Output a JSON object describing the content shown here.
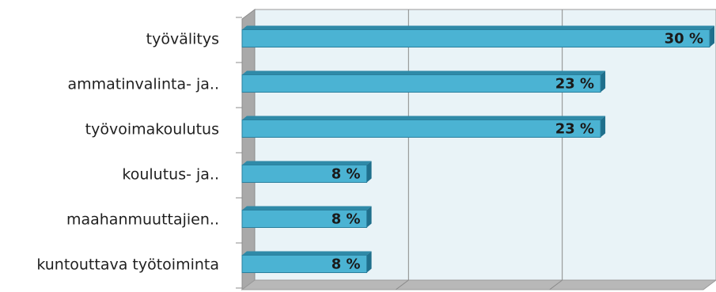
{
  "chart_data": {
    "type": "bar",
    "orientation": "horizontal",
    "categories": [
      "työvälitys",
      "ammatinvalinta- ja..",
      "työvoimakoulutus",
      "koulutus- ja..",
      "maahanmuuttajien..",
      "kuntouttava työtoiminta"
    ],
    "values": [
      30,
      23,
      23,
      8,
      8,
      8
    ],
    "data_labels": [
      "30 %",
      "23 %",
      "23 %",
      "8 %",
      "8 %",
      "8 %"
    ],
    "xlim": [
      0,
      30
    ],
    "grid": true,
    "legend": "none",
    "colors": {
      "bar_front": "#4bb3d3",
      "bar_top": "#2f8aa8",
      "bar_side": "#1f6f8c",
      "plot_back": "#e9f3f7",
      "plot_floor": "#b8b8b8",
      "plot_wall": "#a9a9a9",
      "gridline": "#8a8a8a"
    }
  }
}
